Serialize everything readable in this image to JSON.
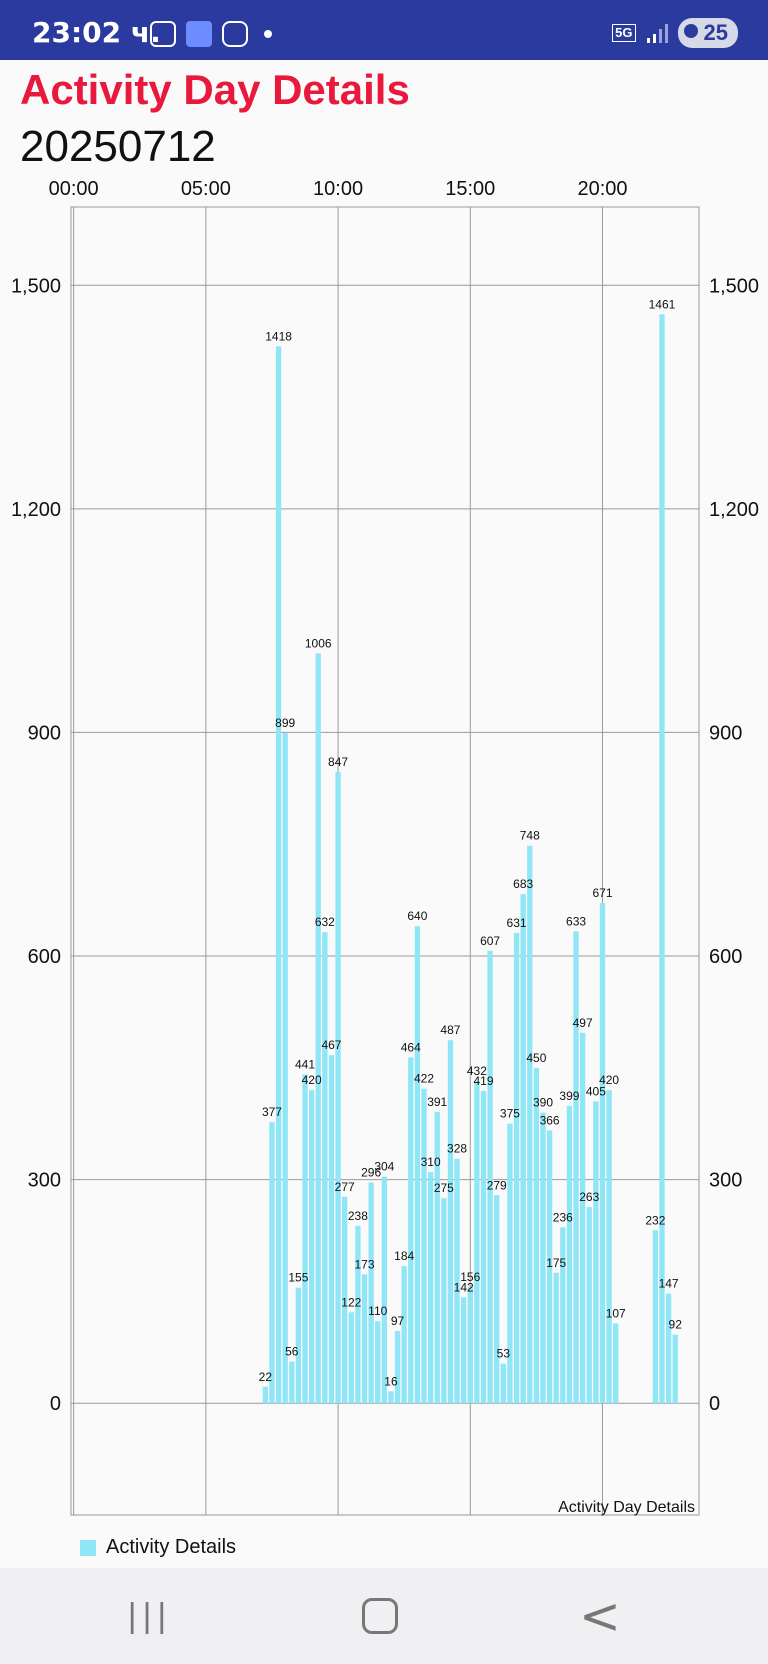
{
  "status_bar": {
    "time": "23:02 ч.",
    "network": "5G",
    "battery": "25"
  },
  "header": {
    "title": "Activity Day Details",
    "date": "20250712"
  },
  "colors": {
    "title": "#e8193c",
    "bar": "#8ee6f6",
    "status_bar": "#2b3a9f"
  },
  "icons": [
    "screenshot-icon",
    "user-badge-icon",
    "instagram-icon",
    "notification-dot-icon",
    "signal-icon",
    "battery-icon",
    "recent-apps-icon",
    "home-icon",
    "back-icon"
  ],
  "chart_data": {
    "type": "bar",
    "title": "",
    "description": "Activity Day Details",
    "legend": {
      "label": "Activity Details",
      "position": "bottom-left"
    },
    "x_ticks": [
      "00:00",
      "05:00",
      "10:00",
      "15:00",
      "20:00"
    ],
    "x_unit": "hours",
    "xlim": [
      -0.1,
      23.65
    ],
    "y_ticks": [
      "0",
      "300",
      "600",
      "900",
      "1,200",
      "1,500"
    ],
    "ylim": [
      -150,
      1605
    ],
    "grid": true,
    "x": [
      7.25,
      7.5,
      7.75,
      8.0,
      8.25,
      8.5,
      8.75,
      9.0,
      9.25,
      9.5,
      9.75,
      10.0,
      10.25,
      10.5,
      10.75,
      11.0,
      11.25,
      11.5,
      11.75,
      12.0,
      12.25,
      12.5,
      12.75,
      13.0,
      13.25,
      13.5,
      13.75,
      14.0,
      14.25,
      14.5,
      14.75,
      15.0,
      15.25,
      15.5,
      15.75,
      16.0,
      16.25,
      16.5,
      16.75,
      17.0,
      17.25,
      17.5,
      17.75,
      18.0,
      18.25,
      18.5,
      18.75,
      19.0,
      19.25,
      19.5,
      19.75,
      20.0,
      20.25,
      20.5,
      22.0,
      22.25,
      22.5,
      22.75
    ],
    "values": [
      22,
      377,
      1418,
      899,
      56,
      155,
      441,
      420,
      1006,
      632,
      467,
      847,
      277,
      122,
      238,
      173,
      296,
      110,
      304,
      16,
      97,
      184,
      464,
      640,
      422,
      310,
      391,
      275,
      487,
      328,
      142,
      156,
      432,
      419,
      607,
      279,
      53,
      375,
      631,
      683,
      748,
      450,
      390,
      366,
      175,
      236,
      399,
      633,
      497,
      263,
      405,
      671,
      420,
      107,
      232,
      1461,
      147,
      92
    ],
    "series": [
      {
        "name": "Activity Details"
      }
    ]
  }
}
